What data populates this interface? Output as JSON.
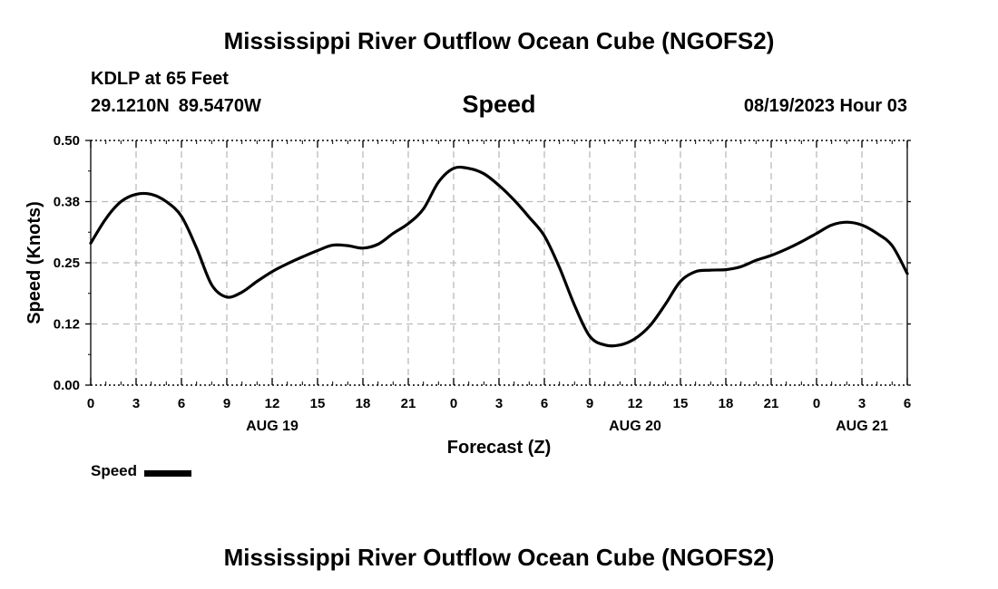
{
  "page": {
    "title_top": "Mississippi River Outflow Ocean Cube (NGOFS2)",
    "title_bottom": "Mississippi River Outflow Ocean Cube (NGOFS2)",
    "station": "KDLP at 65 Feet",
    "latitude": "29.1210N",
    "longitude": "89.5470W",
    "chart_title": "Speed",
    "datetime": "08/19/2023 Hour 03"
  },
  "chart_data": {
    "type": "line",
    "title": "Speed",
    "xlabel": "Forecast (Z)",
    "ylabel": "Speed (Knots)",
    "ylim": [
      0,
      0.5
    ],
    "yticks": [
      "0.00",
      "0.12",
      "0.25",
      "0.38",
      "0.50"
    ],
    "xlim": [
      0,
      54
    ],
    "xtick_hours": [
      0,
      3,
      6,
      9,
      12,
      15,
      18,
      21,
      24,
      27,
      30,
      33,
      36,
      39,
      42,
      45,
      48,
      51,
      54
    ],
    "xtick_labels": [
      "0",
      "3",
      "6",
      "9",
      "12",
      "15",
      "18",
      "21",
      "0",
      "3",
      "6",
      "9",
      "12",
      "15",
      "18",
      "21",
      "0",
      "3",
      "6"
    ],
    "date_labels": [
      {
        "hour": 12,
        "label": "AUG 19"
      },
      {
        "hour": 36,
        "label": "AUG 20"
      },
      {
        "hour": 51,
        "label": "AUG 21"
      }
    ],
    "grid": true,
    "legend": "bottom-left",
    "series": [
      {
        "name": "Speed",
        "color": "#000000",
        "x": [
          0,
          1,
          2,
          3,
          4,
          5,
          6,
          7,
          8,
          9,
          10,
          11,
          12,
          13,
          14,
          15,
          16,
          17,
          18,
          19,
          20,
          21,
          22,
          23,
          24,
          25,
          26,
          27,
          28,
          29,
          30,
          31,
          32,
          33,
          34,
          35,
          36,
          37,
          38,
          39,
          40,
          41,
          42,
          43,
          44,
          45,
          46,
          47,
          48,
          49,
          50,
          51,
          52,
          53,
          54
        ],
        "values": [
          0.29,
          0.34,
          0.375,
          0.39,
          0.39,
          0.375,
          0.345,
          0.28,
          0.205,
          0.18,
          0.19,
          0.212,
          0.232,
          0.248,
          0.262,
          0.275,
          0.286,
          0.285,
          0.28,
          0.288,
          0.31,
          0.33,
          0.36,
          0.415,
          0.443,
          0.443,
          0.432,
          0.408,
          0.378,
          0.343,
          0.305,
          0.24,
          0.163,
          0.1,
          0.082,
          0.082,
          0.095,
          0.122,
          0.165,
          0.212,
          0.232,
          0.235,
          0.236,
          0.242,
          0.255,
          0.265,
          0.278,
          0.293,
          0.31,
          0.327,
          0.333,
          0.327,
          0.31,
          0.285,
          0.228
        ]
      }
    ]
  }
}
